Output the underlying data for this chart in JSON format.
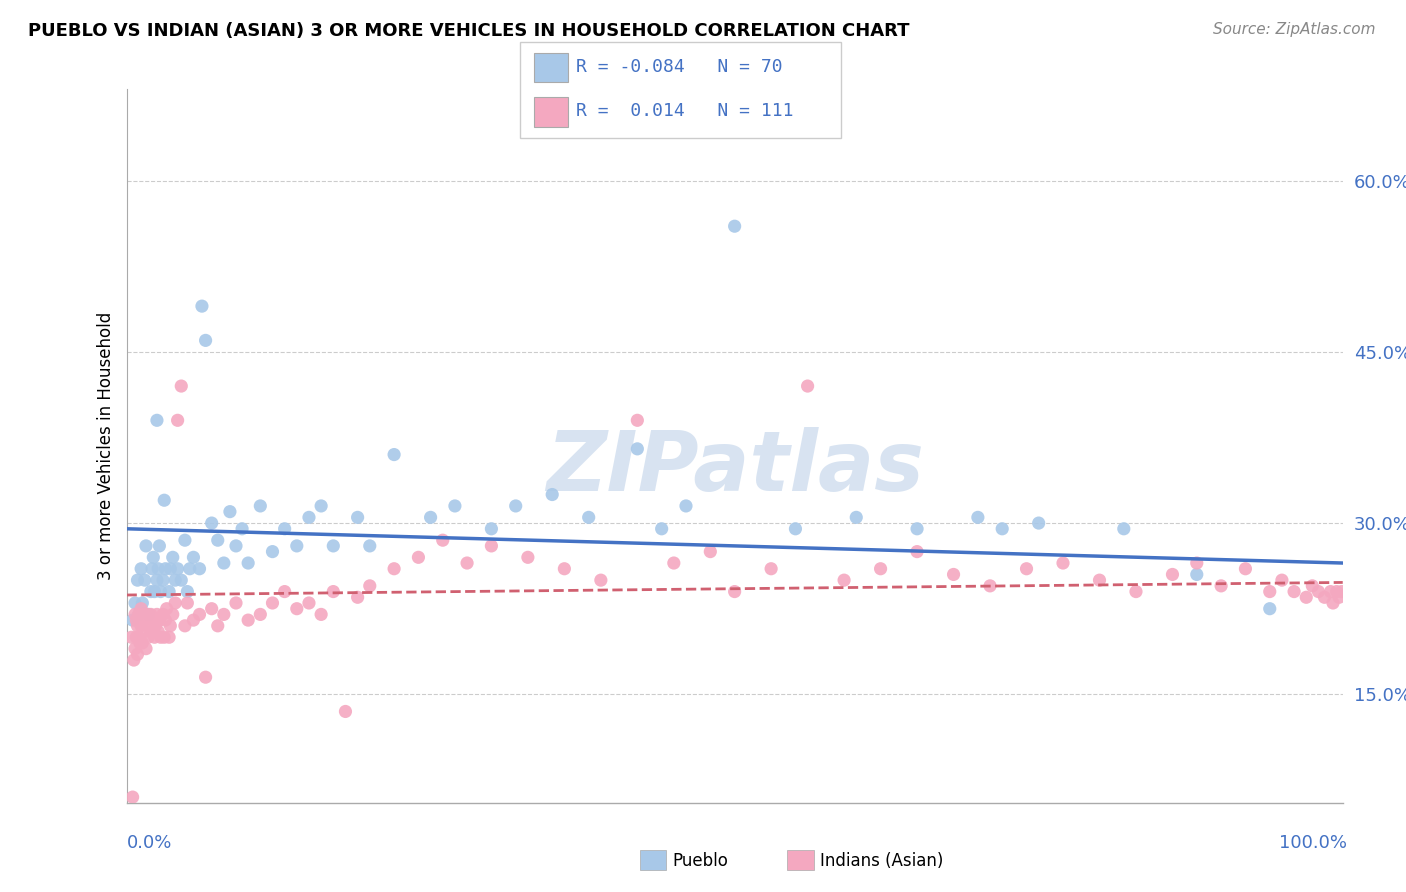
{
  "title": "PUEBLO VS INDIAN (ASIAN) 3 OR MORE VEHICLES IN HOUSEHOLD CORRELATION CHART",
  "source_text": "Source: ZipAtlas.com",
  "ylabel": "3 or more Vehicles in Household",
  "watermark": "ZIPatlas",
  "R_pueblo": "-0.084",
  "N_pueblo": "70",
  "R_asian": "0.014",
  "N_asian": "111",
  "blue_scatter": "#a8c8e8",
  "pink_scatter": "#f4a8c0",
  "blue_line": "#4472c4",
  "pink_line": "#d06070",
  "xlim": [
    0.0,
    1.0
  ],
  "ylim": [
    0.055,
    0.68
  ],
  "yticks": [
    0.15,
    0.3,
    0.45,
    0.6
  ],
  "ytick_labels": [
    "15.0%",
    "30.0%",
    "45.0%",
    "60.0%"
  ],
  "pueblo_trend_start": 0.295,
  "pueblo_trend_end": 0.265,
  "asian_trend_start": 0.237,
  "asian_trend_end": 0.248,
  "pueblo_x": [
    0.005,
    0.007,
    0.009,
    0.01,
    0.012,
    0.013,
    0.015,
    0.016,
    0.018,
    0.02,
    0.021,
    0.022,
    0.023,
    0.025,
    0.025,
    0.026,
    0.027,
    0.028,
    0.03,
    0.031,
    0.032,
    0.035,
    0.036,
    0.038,
    0.04,
    0.042,
    0.045,
    0.048,
    0.05,
    0.052,
    0.055,
    0.06,
    0.062,
    0.065,
    0.07,
    0.075,
    0.08,
    0.085,
    0.09,
    0.095,
    0.1,
    0.11,
    0.12,
    0.13,
    0.14,
    0.15,
    0.16,
    0.17,
    0.19,
    0.2,
    0.22,
    0.25,
    0.27,
    0.3,
    0.32,
    0.35,
    0.38,
    0.42,
    0.44,
    0.46,
    0.5,
    0.55,
    0.6,
    0.65,
    0.7,
    0.72,
    0.75,
    0.82,
    0.88,
    0.94
  ],
  "pueblo_y": [
    0.215,
    0.23,
    0.25,
    0.22,
    0.26,
    0.23,
    0.25,
    0.28,
    0.22,
    0.24,
    0.26,
    0.27,
    0.24,
    0.39,
    0.25,
    0.26,
    0.28,
    0.24,
    0.25,
    0.32,
    0.26,
    0.24,
    0.26,
    0.27,
    0.25,
    0.26,
    0.25,
    0.285,
    0.24,
    0.26,
    0.27,
    0.26,
    0.49,
    0.46,
    0.3,
    0.285,
    0.265,
    0.31,
    0.28,
    0.295,
    0.265,
    0.315,
    0.275,
    0.295,
    0.28,
    0.305,
    0.315,
    0.28,
    0.305,
    0.28,
    0.36,
    0.305,
    0.315,
    0.295,
    0.315,
    0.325,
    0.305,
    0.365,
    0.295,
    0.315,
    0.56,
    0.295,
    0.305,
    0.295,
    0.305,
    0.295,
    0.3,
    0.295,
    0.255,
    0.225
  ],
  "asian_x": [
    0.004,
    0.005,
    0.006,
    0.007,
    0.007,
    0.008,
    0.008,
    0.009,
    0.009,
    0.01,
    0.01,
    0.011,
    0.011,
    0.012,
    0.012,
    0.013,
    0.014,
    0.015,
    0.015,
    0.016,
    0.017,
    0.018,
    0.019,
    0.02,
    0.02,
    0.022,
    0.023,
    0.024,
    0.025,
    0.026,
    0.027,
    0.028,
    0.03,
    0.031,
    0.032,
    0.033,
    0.035,
    0.036,
    0.038,
    0.04,
    0.042,
    0.045,
    0.048,
    0.05,
    0.055,
    0.06,
    0.065,
    0.07,
    0.075,
    0.08,
    0.09,
    0.1,
    0.11,
    0.12,
    0.13,
    0.14,
    0.15,
    0.16,
    0.17,
    0.18,
    0.19,
    0.2,
    0.22,
    0.24,
    0.26,
    0.28,
    0.3,
    0.33,
    0.36,
    0.39,
    0.42,
    0.45,
    0.48,
    0.5,
    0.53,
    0.56,
    0.59,
    0.62,
    0.65,
    0.68,
    0.71,
    0.74,
    0.77,
    0.8,
    0.83,
    0.86,
    0.88,
    0.9,
    0.92,
    0.94,
    0.95,
    0.96,
    0.97,
    0.975,
    0.98,
    0.985,
    0.99,
    0.992,
    0.995,
    0.997,
    0.999
  ],
  "asian_y": [
    0.2,
    0.06,
    0.18,
    0.22,
    0.19,
    0.215,
    0.2,
    0.21,
    0.185,
    0.22,
    0.2,
    0.215,
    0.195,
    0.225,
    0.21,
    0.195,
    0.22,
    0.205,
    0.215,
    0.19,
    0.22,
    0.2,
    0.21,
    0.205,
    0.22,
    0.215,
    0.2,
    0.21,
    0.22,
    0.205,
    0.215,
    0.2,
    0.22,
    0.2,
    0.215,
    0.225,
    0.2,
    0.21,
    0.22,
    0.23,
    0.39,
    0.42,
    0.21,
    0.23,
    0.215,
    0.22,
    0.165,
    0.225,
    0.21,
    0.22,
    0.23,
    0.215,
    0.22,
    0.23,
    0.24,
    0.225,
    0.23,
    0.22,
    0.24,
    0.135,
    0.235,
    0.245,
    0.26,
    0.27,
    0.285,
    0.265,
    0.28,
    0.27,
    0.26,
    0.25,
    0.39,
    0.265,
    0.275,
    0.24,
    0.26,
    0.42,
    0.25,
    0.26,
    0.275,
    0.255,
    0.245,
    0.26,
    0.265,
    0.25,
    0.24,
    0.255,
    0.265,
    0.245,
    0.26,
    0.24,
    0.25,
    0.24,
    0.235,
    0.245,
    0.24,
    0.235,
    0.24,
    0.23,
    0.24,
    0.235,
    0.24
  ]
}
